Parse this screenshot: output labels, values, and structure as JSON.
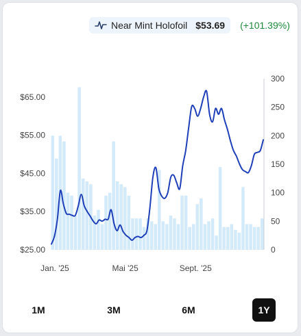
{
  "legend": {
    "icon": "line-chart-icon",
    "name": "Near Mint Holofoil",
    "price": "$53.69",
    "change": "(+101.39%)",
    "change_color": "#1f8a3b"
  },
  "period_buttons": [
    "1M",
    "3M",
    "6M",
    "1Y"
  ],
  "active_period": "1Y",
  "colors": {
    "line": "#1e3fb8",
    "bars": "#d3eafa",
    "axis": "#c9ced6",
    "accent_button": "#111111"
  },
  "chart_data": {
    "type": "line",
    "x_tick_labels": [
      "Jan. '25",
      "Mai '25",
      "Sept. '25"
    ],
    "left_axis": {
      "ticks": [
        "$25.00",
        "$35.00",
        "$45.00",
        "$55.00",
        "$65.00"
      ],
      "range": [
        25,
        69.8
      ]
    },
    "right_axis": {
      "ticks": [
        "0",
        "50",
        "100",
        "150",
        "200",
        "250",
        "300"
      ],
      "range": [
        0,
        300
      ]
    },
    "series": [
      {
        "kind": "line",
        "axis": "left",
        "values": [
          26.5,
          28.5,
          33.0,
          40.5,
          37.0,
          34.5,
          34.3,
          34.0,
          34.0,
          36.5,
          39.5,
          36.5,
          35.0,
          33.8,
          32.5,
          31.8,
          32.8,
          32.5,
          33.0,
          33.0,
          35.5,
          31.8,
          30.0,
          31.5,
          29.8,
          28.8,
          28.2,
          27.5,
          28.2,
          28.5,
          28.2,
          28.8,
          30.0,
          36.0,
          44.0,
          46.5,
          41.0,
          39.0,
          38.5,
          40.0,
          44.0,
          44.5,
          42.5,
          41.0,
          47.0,
          51.0,
          57.0,
          62.5,
          62.0,
          60.0,
          62.0,
          65.0,
          66.5,
          60.5,
          58.5,
          62.0,
          60.5,
          62.0,
          59.0,
          56.5,
          53.5,
          51.0,
          49.5,
          47.5,
          46.0,
          45.5,
          45.2,
          47.0,
          50.0,
          50.5,
          51.0,
          53.8
        ]
      },
      {
        "kind": "bar",
        "axis": "right",
        "values": [
          200,
          160,
          200,
          190,
          100,
          95,
          60,
          285,
          125,
          120,
          115,
          60,
          70,
          45,
          95,
          100,
          190,
          120,
          115,
          110,
          95,
          55,
          55,
          55,
          40,
          55,
          50,
          45,
          140,
          50,
          45,
          60,
          55,
          45,
          95,
          95,
          40,
          45,
          80,
          90,
          45,
          50,
          55,
          25,
          145,
          40,
          40,
          45,
          35,
          30,
          110,
          45,
          45,
          40,
          40,
          55
        ]
      }
    ]
  }
}
